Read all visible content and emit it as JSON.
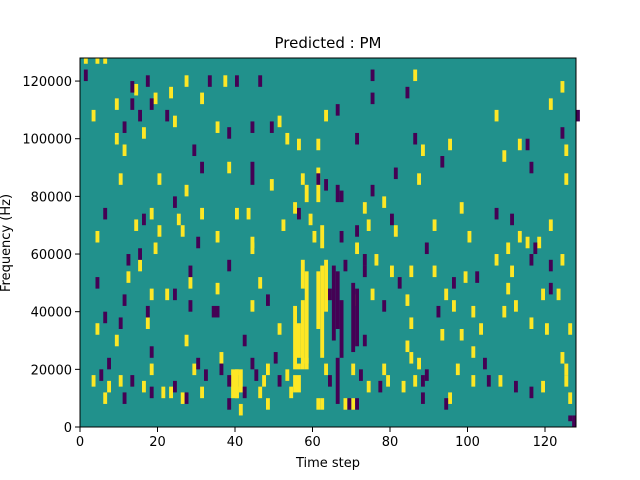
{
  "chart_data": {
    "type": "heatmap",
    "title": "Predicted : PM",
    "xlabel": "Time step",
    "ylabel": "Frequency (Hz)",
    "xlim": [
      0,
      128
    ],
    "ylim": [
      0,
      128000
    ],
    "x_ticks": [
      0,
      20,
      40,
      60,
      80,
      100,
      120
    ],
    "y_ticks": [
      0,
      20000,
      40000,
      60000,
      80000,
      100000,
      120000
    ],
    "grid": false,
    "colors": {
      "background": "#21918c",
      "high": "#fde725",
      "low": "#440154"
    },
    "cells_high": [
      [
        1,
        126000,
        1,
        4000
      ],
      [
        4,
        126000,
        1,
        4000
      ],
      [
        6,
        126000,
        1,
        4000
      ],
      [
        3,
        106000,
        1,
        4000
      ],
      [
        9,
        110000,
        1,
        4000
      ],
      [
        14,
        115000,
        1,
        4000
      ],
      [
        19,
        112000,
        1,
        4000
      ],
      [
        23,
        114000,
        1,
        4000
      ],
      [
        27,
        118000,
        1,
        4000
      ],
      [
        31,
        112000,
        1,
        4000
      ],
      [
        37,
        118000,
        1,
        4000
      ],
      [
        56,
        96000,
        1,
        4000
      ],
      [
        63,
        106000,
        1,
        4000
      ],
      [
        86,
        120000,
        1,
        4000
      ],
      [
        107,
        106000,
        1,
        4000
      ],
      [
        121,
        110000,
        1,
        4000
      ],
      [
        124,
        116000,
        1,
        4000
      ],
      [
        9,
        98000,
        1,
        4000
      ],
      [
        11,
        94000,
        1,
        4000
      ],
      [
        16,
        100000,
        1,
        4000
      ],
      [
        24,
        104000,
        1,
        4000
      ],
      [
        35,
        102000,
        1,
        4000
      ],
      [
        51,
        104000,
        1,
        4000
      ],
      [
        53,
        98000,
        1,
        4000
      ],
      [
        61,
        96000,
        1,
        4000
      ],
      [
        88,
        94000,
        1,
        4000
      ],
      [
        95,
        96000,
        1,
        4000
      ],
      [
        109,
        92000,
        1,
        4000
      ],
      [
        113,
        96000,
        1,
        4000
      ],
      [
        125,
        94000,
        1,
        4000
      ],
      [
        10,
        84000,
        1,
        4000
      ],
      [
        20,
        84000,
        1,
        4000
      ],
      [
        27,
        80000,
        1,
        4000
      ],
      [
        38,
        88000,
        1,
        4000
      ],
      [
        49,
        82000,
        1,
        4000
      ],
      [
        57,
        84000,
        1,
        4000
      ],
      [
        61,
        86000,
        1,
        4000
      ],
      [
        87,
        84000,
        1,
        4000
      ],
      [
        125,
        84000,
        1,
        4000
      ],
      [
        18,
        72000,
        1,
        4000
      ],
      [
        25,
        70000,
        1,
        4000
      ],
      [
        31,
        72000,
        1,
        4000
      ],
      [
        40,
        72000,
        1,
        4000
      ],
      [
        43,
        72000,
        1,
        4000
      ],
      [
        55,
        74000,
        1,
        4000
      ],
      [
        59,
        70000,
        1,
        4000
      ],
      [
        73,
        74000,
        1,
        4000
      ],
      [
        78,
        76000,
        1,
        4000
      ],
      [
        91,
        68000,
        1,
        4000
      ],
      [
        98,
        74000,
        1,
        4000
      ],
      [
        113,
        64000,
        1,
        4000
      ],
      [
        121,
        68000,
        1,
        4000
      ],
      [
        14,
        68000,
        1,
        4000
      ],
      [
        20,
        66000,
        1,
        4000
      ],
      [
        26,
        66000,
        1,
        4000
      ],
      [
        35,
        64000,
        1,
        4000
      ],
      [
        52,
        68000,
        1,
        4000
      ],
      [
        60,
        64000,
        1,
        4000
      ],
      [
        74,
        68000,
        1,
        4000
      ],
      [
        81,
        66000,
        1,
        4000
      ],
      [
        100,
        64000,
        1,
        4000
      ],
      [
        110,
        60000,
        1,
        4000
      ],
      [
        115,
        62000,
        1,
        4000
      ],
      [
        118,
        62000,
        1,
        4000
      ],
      [
        4,
        64000,
        1,
        4000
      ],
      [
        19,
        60000,
        1,
        4000
      ],
      [
        44,
        60000,
        1,
        4000
      ],
      [
        71,
        60000,
        1,
        4000
      ],
      [
        76,
        56000,
        1,
        4000
      ],
      [
        85,
        52000,
        1,
        4000
      ],
      [
        91,
        52000,
        1,
        4000
      ],
      [
        107,
        56000,
        1,
        4000
      ],
      [
        111,
        52000,
        1,
        4000
      ],
      [
        124,
        56000,
        1,
        4000
      ],
      [
        44,
        62000,
        1,
        4000
      ],
      [
        12,
        50000,
        1,
        4000
      ],
      [
        15,
        54000,
        1,
        4000
      ],
      [
        28,
        48000,
        1,
        4000
      ],
      [
        35,
        46000,
        1,
        4000
      ],
      [
        46,
        48000,
        1,
        4000
      ],
      [
        80,
        52000,
        1,
        4000
      ],
      [
        99,
        50000,
        1,
        4000
      ],
      [
        110,
        46000,
        1,
        4000
      ],
      [
        119,
        44000,
        1,
        4000
      ],
      [
        18,
        44000,
        1,
        4000
      ],
      [
        22,
        44000,
        1,
        4000
      ],
      [
        44,
        40000,
        1,
        4000
      ],
      [
        71,
        42000,
        1,
        4000
      ],
      [
        75,
        44000,
        1,
        4000
      ],
      [
        84,
        42000,
        1,
        4000
      ],
      [
        94,
        44000,
        1,
        4000
      ],
      [
        96,
        40000,
        1,
        4000
      ],
      [
        101,
        38000,
        1,
        4000
      ],
      [
        109,
        38000,
        1,
        4000
      ],
      [
        112,
        40000,
        1,
        4000
      ],
      [
        123,
        44000,
        1,
        4000
      ],
      [
        4,
        32000,
        1,
        4000
      ],
      [
        9,
        28000,
        1,
        4000
      ],
      [
        17,
        34000,
        1,
        4000
      ],
      [
        27,
        28000,
        1,
        4000
      ],
      [
        51,
        32000,
        1,
        4000
      ],
      [
        85,
        34000,
        1,
        4000
      ],
      [
        93,
        30000,
        1,
        4000
      ],
      [
        98,
        30000,
        1,
        4000
      ],
      [
        103,
        32000,
        1,
        4000
      ],
      [
        116,
        34000,
        1,
        4000
      ],
      [
        120,
        32000,
        1,
        4000
      ],
      [
        126,
        32000,
        1,
        4000
      ],
      [
        18,
        18000,
        1,
        4000
      ],
      [
        29,
        18000,
        1,
        4000
      ],
      [
        36,
        22000,
        1,
        4000
      ],
      [
        48,
        18000,
        1,
        4000
      ],
      [
        53,
        16000,
        1,
        4000
      ],
      [
        58,
        20000,
        1,
        4000
      ],
      [
        63,
        18000,
        1,
        4000
      ],
      [
        70,
        18000,
        1,
        4000
      ],
      [
        78,
        18000,
        1,
        4000
      ],
      [
        84,
        26000,
        1,
        4000
      ],
      [
        85,
        22000,
        1,
        4000
      ],
      [
        87,
        20000,
        1,
        4000
      ],
      [
        97,
        18000,
        1,
        4000
      ],
      [
        101,
        24000,
        1,
        4000
      ],
      [
        124,
        22000,
        1,
        4000
      ],
      [
        125,
        18000,
        1,
        4000
      ],
      [
        3,
        14000,
        1,
        4000
      ],
      [
        7,
        12000,
        1,
        4000
      ],
      [
        10,
        14000,
        1,
        4000
      ],
      [
        16,
        12000,
        1,
        4000
      ],
      [
        21,
        10000,
        1,
        4000
      ],
      [
        23,
        10000,
        1,
        4000
      ],
      [
        31,
        10000,
        1,
        4000
      ],
      [
        40,
        10000,
        1,
        4000
      ],
      [
        46,
        10000,
        1,
        4000
      ],
      [
        54,
        10000,
        1,
        4000
      ],
      [
        74,
        12000,
        1,
        4000
      ],
      [
        79,
        14000,
        1,
        4000
      ],
      [
        83,
        12000,
        1,
        4000
      ],
      [
        86,
        14000,
        1,
        4000
      ],
      [
        101,
        14000,
        1,
        4000
      ],
      [
        108,
        14000,
        1,
        4000
      ],
      [
        119,
        12000,
        1,
        4000
      ],
      [
        125,
        14000,
        1,
        4000
      ],
      [
        6,
        8000,
        1,
        4000
      ],
      [
        26,
        8000,
        1,
        4000
      ],
      [
        48,
        6000,
        1,
        4000
      ],
      [
        61,
        6000,
        1,
        4000
      ],
      [
        62,
        6000,
        1,
        4000
      ],
      [
        68,
        6000,
        1,
        4000
      ],
      [
        70,
        6000,
        1,
        4000
      ],
      [
        95,
        8000,
        1,
        4000
      ],
      [
        126,
        8000,
        1,
        4000
      ],
      [
        39,
        10000,
        2,
        10000
      ],
      [
        40,
        18000,
        1,
        2000
      ],
      [
        41,
        12000,
        1,
        8000
      ],
      [
        41,
        4000,
        1,
        4000
      ],
      [
        47,
        14000,
        1,
        4000
      ],
      [
        55,
        12000,
        2,
        6000
      ],
      [
        56,
        20000,
        1,
        2000
      ],
      [
        55,
        20000,
        1,
        22000
      ],
      [
        56,
        24000,
        1,
        12000
      ],
      [
        57,
        20000,
        1,
        24000
      ],
      [
        58,
        22000,
        1,
        32000
      ],
      [
        57,
        48000,
        1,
        10000
      ],
      [
        61,
        34000,
        1,
        20000
      ],
      [
        62,
        24000,
        1,
        32000
      ],
      [
        63,
        40000,
        1,
        18000
      ],
      [
        62,
        62000,
        1,
        8000
      ],
      [
        58,
        78000,
        1,
        6000
      ],
      [
        61,
        78000,
        1,
        8000
      ]
    ],
    "cells_low": [
      [
        1,
        120000,
        1,
        4000
      ],
      [
        4,
        126000,
        0,
        0
      ],
      [
        17,
        118000,
        1,
        4000
      ],
      [
        33,
        118000,
        1,
        4000
      ],
      [
        40,
        118000,
        1,
        4000
      ],
      [
        46,
        118000,
        1,
        4000
      ],
      [
        75,
        120000,
        1,
        4000
      ],
      [
        13,
        116000,
        1,
        4000
      ],
      [
        13,
        110000,
        1,
        4000
      ],
      [
        15,
        106000,
        1,
        4000
      ],
      [
        18,
        110000,
        1,
        4000
      ],
      [
        22,
        106000,
        1,
        4000
      ],
      [
        49,
        102000,
        1,
        4000
      ],
      [
        66,
        108000,
        1,
        4000
      ],
      [
        75,
        112000,
        1,
        4000
      ],
      [
        84,
        114000,
        1,
        4000
      ],
      [
        128,
        106000,
        1,
        4000
      ],
      [
        11,
        102000,
        1,
        4000
      ],
      [
        29,
        94000,
        1,
        4000
      ],
      [
        38,
        100000,
        1,
        4000
      ],
      [
        44,
        102000,
        1,
        4000
      ],
      [
        71,
        98000,
        1,
        4000
      ],
      [
        86,
        98000,
        1,
        4000
      ],
      [
        93,
        90000,
        1,
        4000
      ],
      [
        115,
        96000,
        1,
        4000
      ],
      [
        116,
        88000,
        1,
        4000
      ],
      [
        124,
        100000,
        1,
        4000
      ],
      [
        31,
        88000,
        1,
        4000
      ],
      [
        44,
        84000,
        1,
        8000
      ],
      [
        61,
        84000,
        1,
        4000
      ],
      [
        63,
        82000,
        1,
        4000
      ],
      [
        66,
        78000,
        1,
        6000
      ],
      [
        67,
        78000,
        1,
        4000
      ],
      [
        75,
        80000,
        1,
        4000
      ],
      [
        81,
        86000,
        1,
        4000
      ],
      [
        6,
        72000,
        1,
        4000
      ],
      [
        16,
        70000,
        1,
        4000
      ],
      [
        24,
        76000,
        1,
        4000
      ],
      [
        30,
        62000,
        1,
        4000
      ],
      [
        56,
        72000,
        1,
        4000
      ],
      [
        67,
        64000,
        1,
        4000
      ],
      [
        71,
        66000,
        1,
        4000
      ],
      [
        80,
        70000,
        1,
        4000
      ],
      [
        89,
        60000,
        1,
        4000
      ],
      [
        107,
        72000,
        1,
        4000
      ],
      [
        111,
        70000,
        1,
        4000
      ],
      [
        117,
        60000,
        1,
        4000
      ],
      [
        12,
        56000,
        1,
        4000
      ],
      [
        15,
        58000,
        1,
        4000
      ],
      [
        28,
        52000,
        1,
        4000
      ],
      [
        38,
        54000,
        1,
        4000
      ],
      [
        68,
        54000,
        1,
        4000
      ],
      [
        73,
        56000,
        1,
        4000
      ],
      [
        82,
        48000,
        1,
        4000
      ],
      [
        96,
        48000,
        1,
        4000
      ],
      [
        116,
        56000,
        1,
        4000
      ],
      [
        121,
        54000,
        1,
        4000
      ],
      [
        4,
        48000,
        1,
        4000
      ],
      [
        11,
        42000,
        1,
        4000
      ],
      [
        24,
        44000,
        1,
        4000
      ],
      [
        34,
        38000,
        2,
        4000
      ],
      [
        48,
        42000,
        1,
        4000
      ],
      [
        64,
        44000,
        1,
        4000
      ],
      [
        73,
        52000,
        1,
        4000
      ],
      [
        78,
        40000,
        1,
        4000
      ],
      [
        92,
        38000,
        1,
        4000
      ],
      [
        102,
        50000,
        1,
        4000
      ],
      [
        121,
        46000,
        1,
        4000
      ],
      [
        6,
        36000,
        1,
        4000
      ],
      [
        10,
        34000,
        1,
        4000
      ],
      [
        17,
        38000,
        1,
        4000
      ],
      [
        28,
        40000,
        1,
        4000
      ],
      [
        65,
        30000,
        1,
        26000
      ],
      [
        66,
        34000,
        1,
        20000
      ],
      [
        70,
        26000,
        1,
        24000
      ],
      [
        71,
        28000,
        1,
        20000
      ],
      [
        67,
        24000,
        1,
        20000
      ],
      [
        7,
        20000,
        1,
        4000
      ],
      [
        18,
        24000,
        1,
        4000
      ],
      [
        30,
        20000,
        1,
        4000
      ],
      [
        36,
        18000,
        1,
        4000
      ],
      [
        42,
        28000,
        1,
        4000
      ],
      [
        44,
        20000,
        1,
        4000
      ],
      [
        50,
        22000,
        1,
        4000
      ],
      [
        66,
        8000,
        1,
        16000
      ],
      [
        73,
        28000,
        1,
        4000
      ],
      [
        88,
        14000,
        1,
        4000
      ],
      [
        104,
        20000,
        1,
        4000
      ],
      [
        112,
        12000,
        1,
        4000
      ],
      [
        5,
        16000,
        1,
        4000
      ],
      [
        13,
        14000,
        1,
        4000
      ],
      [
        24,
        12000,
        1,
        4000
      ],
      [
        32,
        16000,
        1,
        4000
      ],
      [
        38,
        14000,
        1,
        4000
      ],
      [
        42,
        10000,
        1,
        4000
      ],
      [
        45,
        16000,
        1,
        4000
      ],
      [
        51,
        14000,
        1,
        4000
      ],
      [
        64,
        14000,
        1,
        4000
      ],
      [
        72,
        16000,
        1,
        4000
      ],
      [
        77,
        12000,
        1,
        4000
      ],
      [
        89,
        16000,
        1,
        4000
      ],
      [
        105,
        14000,
        1,
        4000
      ],
      [
        116,
        10000,
        1,
        4000
      ],
      [
        11,
        8000,
        1,
        4000
      ],
      [
        18,
        10000,
        1,
        4000
      ],
      [
        27,
        8000,
        1,
        4000
      ],
      [
        38,
        6000,
        1,
        4000
      ],
      [
        69,
        6000,
        1,
        4000
      ],
      [
        71,
        6000,
        1,
        4000
      ],
      [
        88,
        8000,
        1,
        4000
      ],
      [
        94,
        6000,
        1,
        4000
      ],
      [
        127,
        0,
        1,
        4000
      ],
      [
        126,
        2000,
        1,
        2000
      ],
      [
        128,
        0,
        0,
        0
      ]
    ]
  }
}
